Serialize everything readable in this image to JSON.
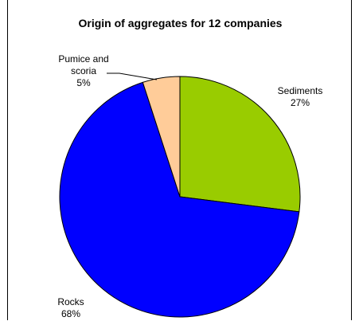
{
  "chart_data": {
    "type": "pie",
    "title": "Origin of aggregates for 12 companies",
    "slices": [
      {
        "label_lines": [
          "Sediments",
          "27%"
        ],
        "value": 27,
        "color": "#99CC00"
      },
      {
        "label_lines": [
          "Rocks",
          "68%"
        ],
        "value": 68,
        "color": "#0000FF"
      },
      {
        "label_lines": [
          "Pumice and",
          "scoria",
          "5%"
        ],
        "value": 5,
        "color": "#FFCC99"
      }
    ],
    "start_angle_deg": 0,
    "direction": "clockwise",
    "legend": "none"
  }
}
